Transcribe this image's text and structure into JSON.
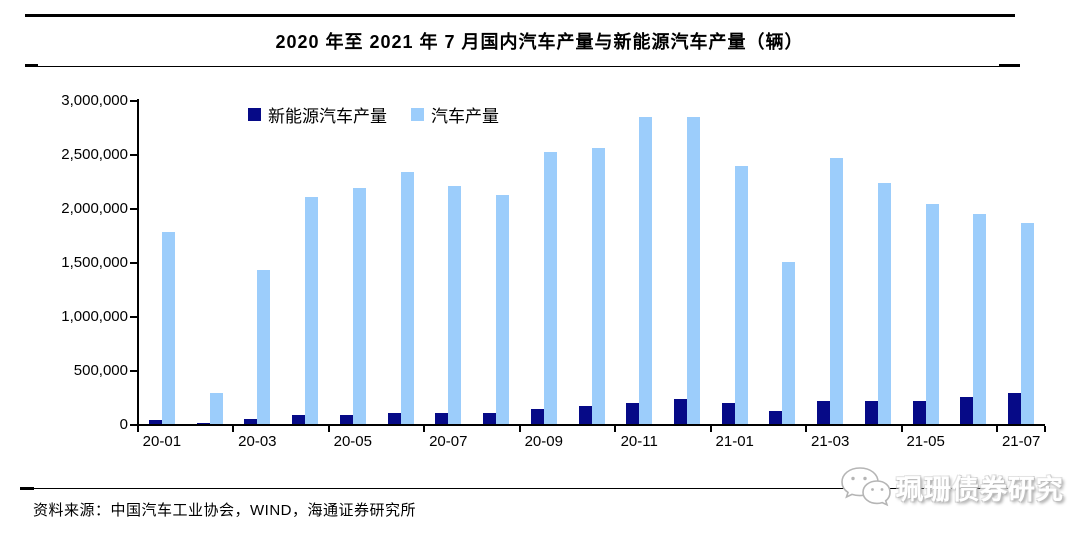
{
  "header": {
    "title": "2020 年至 2021 年 7 月国内汽车产量与新能源汽车产量（辆）"
  },
  "chart_data": {
    "type": "bar",
    "title": "2020 年至 2021 年 7 月国内汽车产量与新能源汽车产量（辆）",
    "categories": [
      "20-01",
      "20-02",
      "20-03",
      "20-04",
      "20-05",
      "20-06",
      "20-07",
      "20-08",
      "20-09",
      "20-10",
      "20-11",
      "20-12",
      "21-01",
      "21-02",
      "21-03",
      "21-04",
      "21-05",
      "21-06",
      "21-07"
    ],
    "series": [
      {
        "name": "新能源汽车产量",
        "color": "#060a87",
        "values": [
          40000,
          10000,
          50000,
          80000,
          84000,
          102000,
          100000,
          106000,
          136000,
          167000,
          198000,
          235000,
          194000,
          124000,
          216000,
          216000,
          217000,
          248000,
          284000
        ]
      },
      {
        "name": "汽车产量",
        "color": "#9ccdfb",
        "values": [
          1780000,
          285000,
          1422000,
          2102000,
          2187000,
          2329000,
          2201000,
          2119000,
          2523000,
          2553000,
          2847000,
          2840000,
          2388000,
          1503000,
          2462000,
          2234000,
          2040000,
          1943000,
          1864000
        ]
      }
    ],
    "ylim": [
      0,
      3000000
    ],
    "y_tick_labels": [
      "0",
      "500,000",
      "1,000,000",
      "1,500,000",
      "2,000,000",
      "2,500,000",
      "3,000,000"
    ],
    "x_tick_labels": [
      "20-01",
      "20-03",
      "20-05",
      "20-07",
      "20-09",
      "20-11",
      "21-01",
      "21-03",
      "21-05",
      "21-07"
    ],
    "legend_position": "top-center",
    "grid": false
  },
  "footer": {
    "source": "资料来源：中国汽车工业协会，WIND，海通证券研究所"
  },
  "watermark": {
    "text": "珮珊债券研究"
  }
}
